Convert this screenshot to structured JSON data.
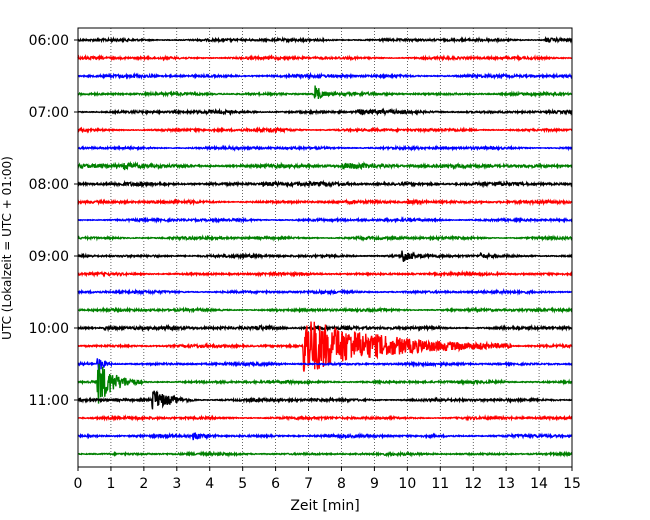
{
  "chart_data": {
    "type": "line",
    "title": "",
    "xlabel": "Zeit  [min]",
    "ylabel": "UTC (Lokalzeit = UTC + 01:00)",
    "xlim": [
      0,
      15
    ],
    "x_ticks": [
      "0",
      "1",
      "2",
      "3",
      "4",
      "5",
      "6",
      "7",
      "8",
      "9",
      "10",
      "11",
      "12",
      "13",
      "14",
      "15"
    ],
    "y_tick_labels": [
      "06:00",
      "07:00",
      "08:00",
      "09:00",
      "10:00",
      "11:00"
    ],
    "grid": "vertical dotted",
    "legend": "none",
    "trace_interval_minutes": 15,
    "series_colors": [
      "#000000",
      "#ff0000",
      "#0000ff",
      "#008000"
    ],
    "traces": [
      {
        "start": "06:00",
        "color": "#000000",
        "noise": 1.0,
        "events": [
          {
            "t": 14.2,
            "amp": 2.0,
            "dur": 0.5
          }
        ]
      },
      {
        "start": "06:15",
        "color": "#ff0000",
        "noise": 1.0,
        "events": []
      },
      {
        "start": "06:30",
        "color": "#0000ff",
        "noise": 1.1,
        "events": []
      },
      {
        "start": "06:45",
        "color": "#008000",
        "noise": 1.0,
        "events": [
          {
            "t": 7.2,
            "amp": 11.0,
            "dur": 0.15
          }
        ]
      },
      {
        "start": "07:00",
        "color": "#000000",
        "noise": 1.1,
        "events": [
          {
            "t": 8.5,
            "amp": 2.0,
            "dur": 0.6
          }
        ]
      },
      {
        "start": "07:15",
        "color": "#ff0000",
        "noise": 1.0,
        "events": [
          {
            "t": 5.8,
            "amp": 1.8,
            "dur": 0.4
          }
        ]
      },
      {
        "start": "07:30",
        "color": "#0000ff",
        "noise": 1.0,
        "events": []
      },
      {
        "start": "07:45",
        "color": "#008000",
        "noise": 1.3,
        "events": [
          {
            "t": 1.4,
            "amp": 3.0,
            "dur": 0.6
          },
          {
            "t": 8.0,
            "amp": 2.2,
            "dur": 1.2
          }
        ]
      },
      {
        "start": "08:00",
        "color": "#000000",
        "noise": 1.3,
        "events": [
          {
            "t": 5.6,
            "amp": 2.0,
            "dur": 0.5
          }
        ]
      },
      {
        "start": "08:15",
        "color": "#ff0000",
        "noise": 1.1,
        "events": [
          {
            "t": 10.0,
            "amp": 2.0,
            "dur": 0.5
          }
        ]
      },
      {
        "start": "08:30",
        "color": "#0000ff",
        "noise": 1.0,
        "events": []
      },
      {
        "start": "08:45",
        "color": "#008000",
        "noise": 1.0,
        "events": []
      },
      {
        "start": "09:00",
        "color": "#000000",
        "noise": 1.1,
        "events": [
          {
            "t": 9.85,
            "amp": 9.0,
            "dur": 0.15
          },
          {
            "t": 12.2,
            "amp": 2.5,
            "dur": 0.2
          }
        ]
      },
      {
        "start": "09:15",
        "color": "#ff0000",
        "noise": 1.0,
        "events": []
      },
      {
        "start": "09:30",
        "color": "#0000ff",
        "noise": 1.0,
        "events": []
      },
      {
        "start": "09:45",
        "color": "#008000",
        "noise": 1.0,
        "events": []
      },
      {
        "start": "10:00",
        "color": "#000000",
        "noise": 1.2,
        "events": [
          {
            "t": 0.8,
            "amp": 2.0,
            "dur": 0.5
          },
          {
            "t": 5.4,
            "amp": 2.0,
            "dur": 0.6
          }
        ]
      },
      {
        "start": "10:15",
        "color": "#ff0000",
        "noise": 1.0,
        "events": [
          {
            "t": 6.85,
            "amp": 30.0,
            "dur": 2.1
          }
        ]
      },
      {
        "start": "10:30",
        "color": "#0000ff",
        "noise": 1.0,
        "events": [
          {
            "t": 0.6,
            "amp": 10.0,
            "dur": 0.15
          }
        ]
      },
      {
        "start": "10:45",
        "color": "#008000",
        "noise": 1.0,
        "events": [
          {
            "t": 0.6,
            "amp": 22.0,
            "dur": 0.45
          }
        ]
      },
      {
        "start": "11:00",
        "color": "#000000",
        "noise": 1.1,
        "events": [
          {
            "t": 2.25,
            "amp": 11.0,
            "dur": 0.45
          }
        ]
      },
      {
        "start": "11:15",
        "color": "#ff0000",
        "noise": 1.0,
        "events": []
      },
      {
        "start": "11:30",
        "color": "#0000ff",
        "noise": 1.0,
        "events": [
          {
            "t": 3.5,
            "amp": 4.0,
            "dur": 0.25
          }
        ]
      },
      {
        "start": "11:45",
        "color": "#008000",
        "noise": 0.9,
        "events": []
      }
    ]
  }
}
